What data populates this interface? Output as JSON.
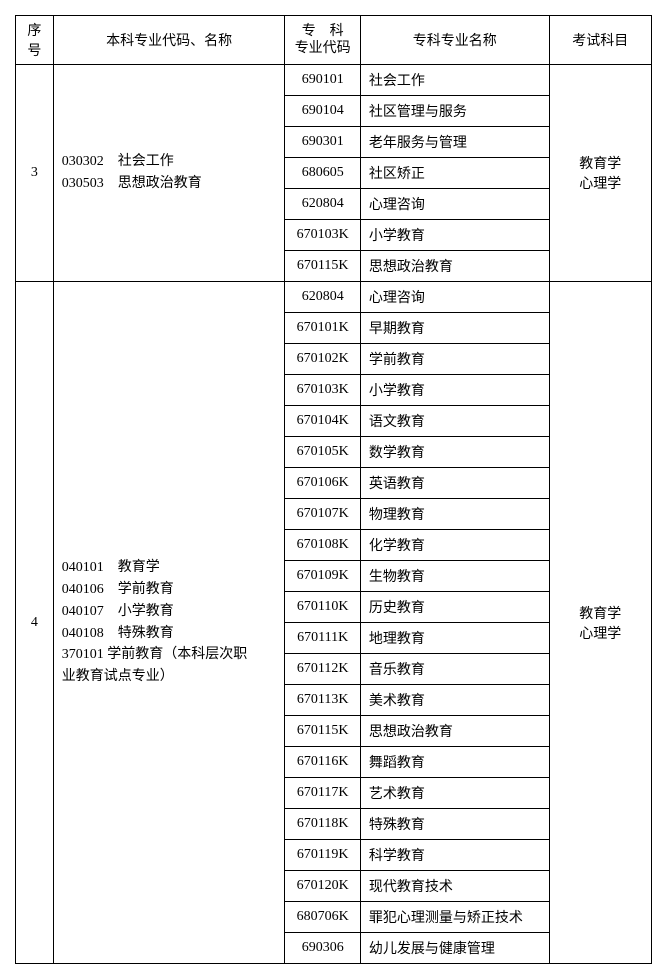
{
  "columns": {
    "seq": "序号",
    "benke": "本科专业代码、名称",
    "zhuanke_code_l1": "专　科",
    "zhuanke_code_l2": "专业代码",
    "zhuanke_name": "专科专业名称",
    "exam": "考试科目"
  },
  "groups": [
    {
      "seq": "3",
      "benke_lines": [
        "030302　社会工作",
        "030503　思想政治教育"
      ],
      "exam_lines": [
        "教育学",
        "心理学"
      ],
      "rows": [
        {
          "code": "690101",
          "name": "社会工作"
        },
        {
          "code": "690104",
          "name": "社区管理与服务"
        },
        {
          "code": "690301",
          "name": "老年服务与管理"
        },
        {
          "code": "680605",
          "name": "社区矫正"
        },
        {
          "code": "620804",
          "name": "心理咨询"
        },
        {
          "code": "670103K",
          "name": "小学教育"
        },
        {
          "code": "670115K",
          "name": "思想政治教育"
        }
      ]
    },
    {
      "seq": "4",
      "benke_lines": [
        "040101　教育学",
        "040106　学前教育",
        "040107　小学教育",
        "040108　特殊教育",
        "370101  学前教育（本科层次职",
        "业教育试点专业）"
      ],
      "exam_lines": [
        "教育学",
        "心理学"
      ],
      "rows": [
        {
          "code": "620804",
          "name": "心理咨询"
        },
        {
          "code": "670101K",
          "name": "早期教育"
        },
        {
          "code": "670102K",
          "name": "学前教育"
        },
        {
          "code": "670103K",
          "name": "小学教育"
        },
        {
          "code": "670104K",
          "name": "语文教育"
        },
        {
          "code": "670105K",
          "name": "数学教育"
        },
        {
          "code": "670106K",
          "name": "英语教育"
        },
        {
          "code": "670107K",
          "name": "物理教育"
        },
        {
          "code": "670108K",
          "name": "化学教育"
        },
        {
          "code": "670109K",
          "name": "生物教育"
        },
        {
          "code": "670110K",
          "name": "历史教育"
        },
        {
          "code": "670111K",
          "name": "地理教育"
        },
        {
          "code": "670112K",
          "name": "音乐教育"
        },
        {
          "code": "670113K",
          "name": "美术教育"
        },
        {
          "code": "670115K",
          "name": "思想政治教育"
        },
        {
          "code": "670116K",
          "name": "舞蹈教育"
        },
        {
          "code": "670117K",
          "name": "艺术教育"
        },
        {
          "code": "670118K",
          "name": "特殊教育"
        },
        {
          "code": "670119K",
          "name": "科学教育"
        },
        {
          "code": "670120K",
          "name": "现代教育技术"
        },
        {
          "code": "680706K",
          "name": "罪犯心理测量与矫正技术"
        },
        {
          "code": "690306",
          "name": "幼儿发展与健康管理"
        }
      ]
    }
  ]
}
